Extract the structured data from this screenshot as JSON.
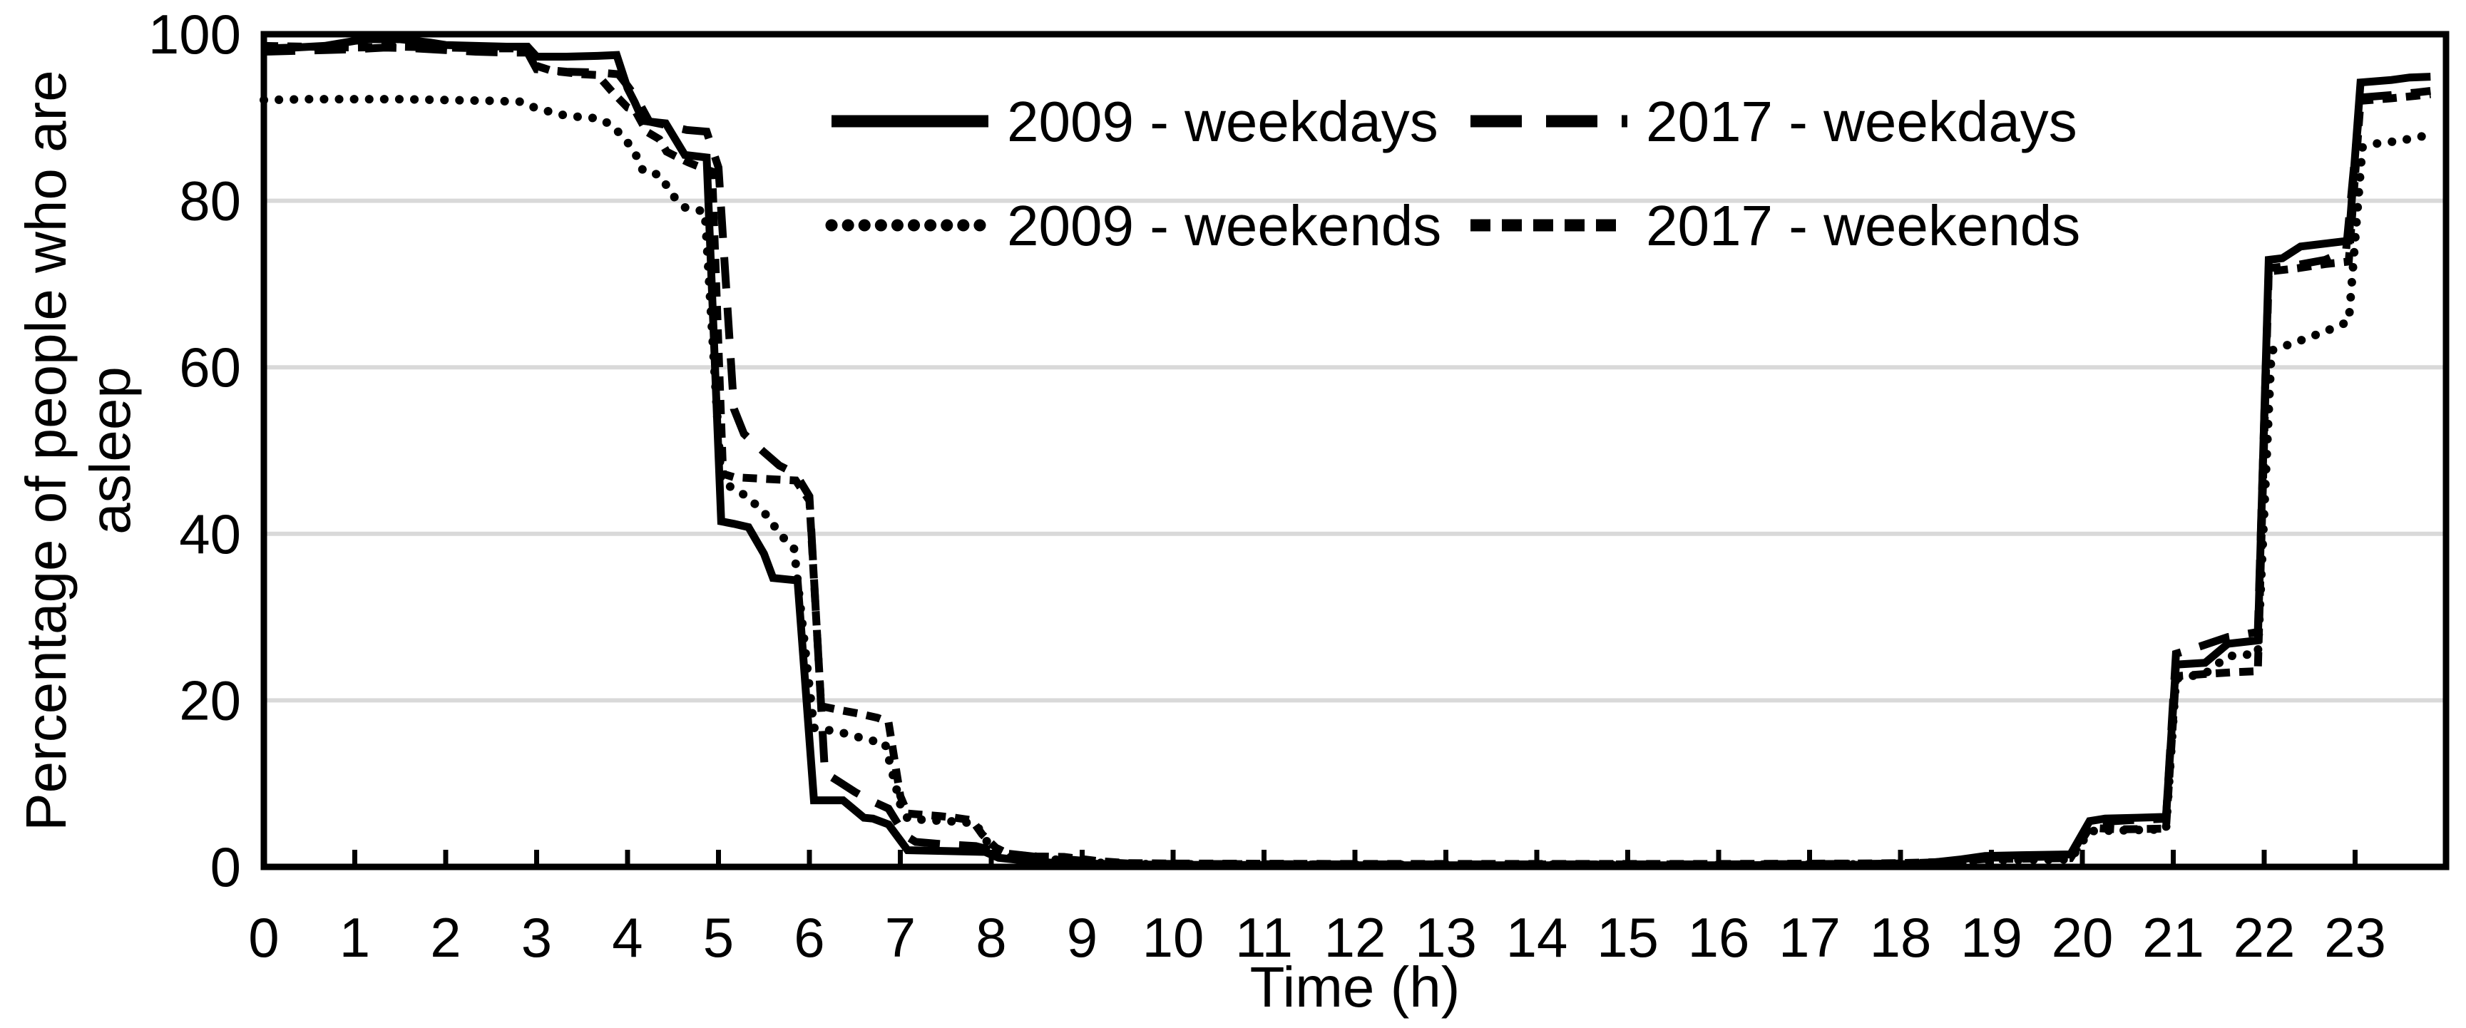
{
  "chart_data": {
    "type": "line",
    "title": "",
    "xlabel": "Time (h)",
    "ylabel": "Percentage of people who are asleep",
    "ylabel_lines": [
      "Percentage of people who are",
      "asleep"
    ],
    "xlim": [
      0,
      24
    ],
    "ylim": [
      0,
      100
    ],
    "x_tick_labels": [
      "0",
      "1",
      "2",
      "3",
      "4",
      "5",
      "6",
      "7",
      "8",
      "9",
      "10",
      "11",
      "12",
      "13",
      "14",
      "15",
      "16",
      "17",
      "18",
      "19",
      "20",
      "21",
      "22",
      "23"
    ],
    "y_tick_labels": [
      "0",
      "20",
      "40",
      "60",
      "80",
      "100"
    ],
    "y_tick_values": [
      0,
      20,
      40,
      60,
      80,
      100
    ],
    "gridline_values": [
      20,
      40,
      60,
      80
    ],
    "grid": "horizontal-only",
    "legend_position": "top-center-two-rows",
    "colors": {
      "line": "#000000",
      "grid": "#d9d9d9",
      "background": "#ffffff",
      "text": "#000000"
    },
    "series": [
      {
        "name": "2009 - weekdays",
        "style": "solid",
        "points": [
          [
            0,
            98.3
          ],
          [
            0.33,
            98.4
          ],
          [
            0.67,
            98.6
          ],
          [
            1,
            99.2
          ],
          [
            1.17,
            99.4
          ],
          [
            1.5,
            99.4
          ],
          [
            1.83,
            99
          ],
          [
            2,
            98.7
          ],
          [
            2.33,
            98.6
          ],
          [
            2.67,
            98.5
          ],
          [
            2.9,
            98.5
          ],
          [
            3,
            97.3
          ],
          [
            3.33,
            97.3
          ],
          [
            3.67,
            97.4
          ],
          [
            3.88,
            97.5
          ],
          [
            4,
            93.5
          ],
          [
            4.08,
            91.8
          ],
          [
            4.17,
            89.6
          ],
          [
            4.33,
            89.4
          ],
          [
            4.42,
            89.3
          ],
          [
            4.63,
            85.5
          ],
          [
            4.87,
            85.2
          ],
          [
            5.03,
            41.5
          ],
          [
            5.17,
            41.2
          ],
          [
            5.33,
            40.8
          ],
          [
            5.5,
            37.6
          ],
          [
            5.6,
            34.7
          ],
          [
            5.87,
            34.4
          ],
          [
            6.05,
            8
          ],
          [
            6.37,
            8
          ],
          [
            6.6,
            5.9
          ],
          [
            6.7,
            5.8
          ],
          [
            6.87,
            5.1
          ],
          [
            7.08,
            2
          ],
          [
            7.5,
            1.9
          ],
          [
            7.93,
            1.8
          ],
          [
            8.08,
            1.1
          ],
          [
            8.33,
            0.8
          ],
          [
            8.67,
            0.5
          ],
          [
            9,
            0.4
          ],
          [
            9.5,
            0.3
          ],
          [
            10,
            0.25
          ],
          [
            12,
            0.2
          ],
          [
            14,
            0.2
          ],
          [
            16,
            0.2
          ],
          [
            17.5,
            0.25
          ],
          [
            18,
            0.3
          ],
          [
            18.33,
            0.5
          ],
          [
            18.67,
            0.9
          ],
          [
            18.93,
            1.3
          ],
          [
            19.33,
            1.4
          ],
          [
            19.87,
            1.5
          ],
          [
            20.08,
            5.5
          ],
          [
            20.25,
            5.8
          ],
          [
            20.6,
            5.9
          ],
          [
            20.92,
            6
          ],
          [
            21.03,
            24.3
          ],
          [
            21.35,
            24.5
          ],
          [
            21.6,
            26.8
          ],
          [
            21.93,
            27.2
          ],
          [
            22.05,
            72.9
          ],
          [
            22.2,
            73.1
          ],
          [
            22.4,
            74.5
          ],
          [
            22.7,
            74.9
          ],
          [
            22.93,
            75.2
          ],
          [
            23.06,
            94.2
          ],
          [
            23.4,
            94.5
          ],
          [
            23.6,
            94.8
          ],
          [
            23.83,
            94.9
          ]
        ]
      },
      {
        "name": "2017 - weekdays",
        "style": "long-dash",
        "points": [
          [
            0,
            97.9
          ],
          [
            0.33,
            98
          ],
          [
            0.67,
            98.1
          ],
          [
            1,
            98.2
          ],
          [
            1.33,
            98.4
          ],
          [
            1.67,
            98.3
          ],
          [
            2,
            98.1
          ],
          [
            2.33,
            97.9
          ],
          [
            2.67,
            97.8
          ],
          [
            2.9,
            97.8
          ],
          [
            3,
            95.8
          ],
          [
            3.33,
            95.5
          ],
          [
            3.67,
            95.4
          ],
          [
            3.9,
            95.2
          ],
          [
            4,
            93.8
          ],
          [
            4.1,
            92.3
          ],
          [
            4.24,
            89.5
          ],
          [
            4.42,
            89.1
          ],
          [
            4.65,
            88.5
          ],
          [
            4.87,
            88.3
          ],
          [
            5,
            84
          ],
          [
            5.17,
            55
          ],
          [
            5.28,
            52
          ],
          [
            5.5,
            49.8
          ],
          [
            5.67,
            48.2
          ],
          [
            5.85,
            47.2
          ],
          [
            6,
            44.5
          ],
          [
            6.17,
            11.3
          ],
          [
            6.33,
            10.2
          ],
          [
            6.5,
            9
          ],
          [
            6.63,
            8.2
          ],
          [
            6.87,
            7
          ],
          [
            7.05,
            3.8
          ],
          [
            7.17,
            3
          ],
          [
            7.5,
            2.7
          ],
          [
            7.83,
            2.5
          ],
          [
            8,
            2
          ],
          [
            8.17,
            1.6
          ],
          [
            8.5,
            1.2
          ],
          [
            8.83,
            0.9
          ],
          [
            9.17,
            0.6
          ],
          [
            9.5,
            0.4
          ],
          [
            10,
            0.35
          ],
          [
            12,
            0.3
          ],
          [
            14,
            0.3
          ],
          [
            16,
            0.3
          ],
          [
            17.5,
            0.35
          ],
          [
            18,
            0.4
          ],
          [
            18.5,
            0.6
          ],
          [
            18.93,
            1.1
          ],
          [
            19.5,
            1.2
          ],
          [
            19.87,
            1.3
          ],
          [
            20.08,
            5.3
          ],
          [
            20.5,
            5.6
          ],
          [
            20.92,
            5.8
          ],
          [
            21.03,
            25.6
          ],
          [
            21.3,
            26.5
          ],
          [
            21.6,
            27.6
          ],
          [
            21.93,
            28.2
          ],
          [
            22.05,
            71.9
          ],
          [
            22.37,
            72.3
          ],
          [
            22.67,
            72.9
          ],
          [
            22.9,
            74
          ],
          [
            23.06,
            92.4
          ],
          [
            23.4,
            92.7
          ],
          [
            23.67,
            93
          ],
          [
            23.83,
            93.2
          ]
        ]
      },
      {
        "name": "2009 - weekends",
        "style": "dotted",
        "points": [
          [
            0,
            92.1
          ],
          [
            0.5,
            92.2
          ],
          [
            1,
            92.2
          ],
          [
            1.5,
            92.2
          ],
          [
            2,
            92.1
          ],
          [
            2.5,
            92
          ],
          [
            2.82,
            91.9
          ],
          [
            3,
            91.1
          ],
          [
            3.33,
            90.2
          ],
          [
            3.67,
            89.9
          ],
          [
            3.83,
            89.1
          ],
          [
            4,
            87
          ],
          [
            4.08,
            85.8
          ],
          [
            4.17,
            83.6
          ],
          [
            4.35,
            83.1
          ],
          [
            4.53,
            80.2
          ],
          [
            4.63,
            79.2
          ],
          [
            4.85,
            78.7
          ],
          [
            5.03,
            46.3
          ],
          [
            5.28,
            44.7
          ],
          [
            5.4,
            43.6
          ],
          [
            5.55,
            42
          ],
          [
            5.67,
            40
          ],
          [
            5.83,
            38.3
          ],
          [
            6.05,
            16.7
          ],
          [
            6.33,
            16.2
          ],
          [
            6.67,
            15.2
          ],
          [
            6.83,
            14.9
          ],
          [
            7,
            7.5
          ],
          [
            7.08,
            5.8
          ],
          [
            7.33,
            5.6
          ],
          [
            7.67,
            5.4
          ],
          [
            7.83,
            5.2
          ],
          [
            8,
            2.2
          ],
          [
            8.17,
            1.2
          ],
          [
            8.5,
            1
          ],
          [
            8.83,
            0.8
          ],
          [
            9.17,
            0.5
          ],
          [
            9.5,
            0.35
          ],
          [
            10,
            0.3
          ],
          [
            12,
            0.25
          ],
          [
            14,
            0.25
          ],
          [
            16,
            0.25
          ],
          [
            17.5,
            0.3
          ],
          [
            18,
            0.35
          ],
          [
            18.5,
            0.5
          ],
          [
            18.93,
            0.8
          ],
          [
            19.5,
            0.85
          ],
          [
            19.87,
            0.9
          ],
          [
            20.08,
            4.3
          ],
          [
            20.5,
            4.4
          ],
          [
            20.92,
            4.5
          ],
          [
            21.03,
            22.6
          ],
          [
            21.35,
            23.2
          ],
          [
            21.6,
            25.3
          ],
          [
            21.93,
            25.6
          ],
          [
            22.08,
            62
          ],
          [
            22.37,
            63.1
          ],
          [
            22.67,
            64.3
          ],
          [
            22.93,
            65.5
          ],
          [
            23.08,
            86.4
          ],
          [
            23.25,
            86.9
          ],
          [
            23.5,
            87.2
          ],
          [
            23.7,
            87.7
          ],
          [
            23.83,
            87.8
          ]
        ]
      },
      {
        "name": "2017 - weekends",
        "style": "short-dash",
        "points": [
          [
            0,
            98.6
          ],
          [
            0.5,
            98.5
          ],
          [
            1,
            98.4
          ],
          [
            1.5,
            98.5
          ],
          [
            2,
            98.4
          ],
          [
            2.5,
            98.3
          ],
          [
            2.9,
            98.3
          ],
          [
            3,
            96.2
          ],
          [
            3.17,
            95.6
          ],
          [
            3.5,
            95.2
          ],
          [
            3.67,
            95.1
          ],
          [
            3.83,
            93.1
          ],
          [
            4,
            91.2
          ],
          [
            4.08,
            90.9
          ],
          [
            4.21,
            88.3
          ],
          [
            4.35,
            87.4
          ],
          [
            4.43,
            85.9
          ],
          [
            4.5,
            85.5
          ],
          [
            4.67,
            84.6
          ],
          [
            4.83,
            83.9
          ],
          [
            4.93,
            83.5
          ],
          [
            5.05,
            47.2
          ],
          [
            5.17,
            46.8
          ],
          [
            5.5,
            46.6
          ],
          [
            5.85,
            46.4
          ],
          [
            6,
            44
          ],
          [
            6.13,
            19.3
          ],
          [
            6.35,
            18.8
          ],
          [
            6.55,
            18.4
          ],
          [
            6.75,
            17.9
          ],
          [
            6.87,
            17.4
          ],
          [
            7,
            8.5
          ],
          [
            7.08,
            6.4
          ],
          [
            7.44,
            6.1
          ],
          [
            7.6,
            5.9
          ],
          [
            7.79,
            5.6
          ],
          [
            7.9,
            3.9
          ],
          [
            8.05,
            2.3
          ],
          [
            8.2,
            1.5
          ],
          [
            8.5,
            1.25
          ],
          [
            8.8,
            1.2
          ],
          [
            9.17,
            0.7
          ],
          [
            9.5,
            0.45
          ],
          [
            10,
            0.4
          ],
          [
            12,
            0.35
          ],
          [
            14,
            0.35
          ],
          [
            16,
            0.35
          ],
          [
            17.5,
            0.4
          ],
          [
            18,
            0.45
          ],
          [
            18.5,
            0.6
          ],
          [
            18.93,
            0.95
          ],
          [
            19.5,
            1
          ],
          [
            19.87,
            1.05
          ],
          [
            20.08,
            4.7
          ],
          [
            20.4,
            4.5
          ],
          [
            20.92,
            4.6
          ],
          [
            21.03,
            22.9
          ],
          [
            21.4,
            23.2
          ],
          [
            21.7,
            23.4
          ],
          [
            21.93,
            23.5
          ],
          [
            22.05,
            71.5
          ],
          [
            22.37,
            71.9
          ],
          [
            22.67,
            72.4
          ],
          [
            22.93,
            72.7
          ],
          [
            23.06,
            92
          ],
          [
            23.4,
            92.3
          ],
          [
            23.67,
            92.6
          ],
          [
            23.83,
            92.8
          ]
        ]
      }
    ],
    "legend": {
      "rows": [
        [
          "2009 - weekdays",
          "2017 - weekdays"
        ],
        [
          "2009 - weekends",
          "2017 - weekends"
        ]
      ]
    }
  }
}
